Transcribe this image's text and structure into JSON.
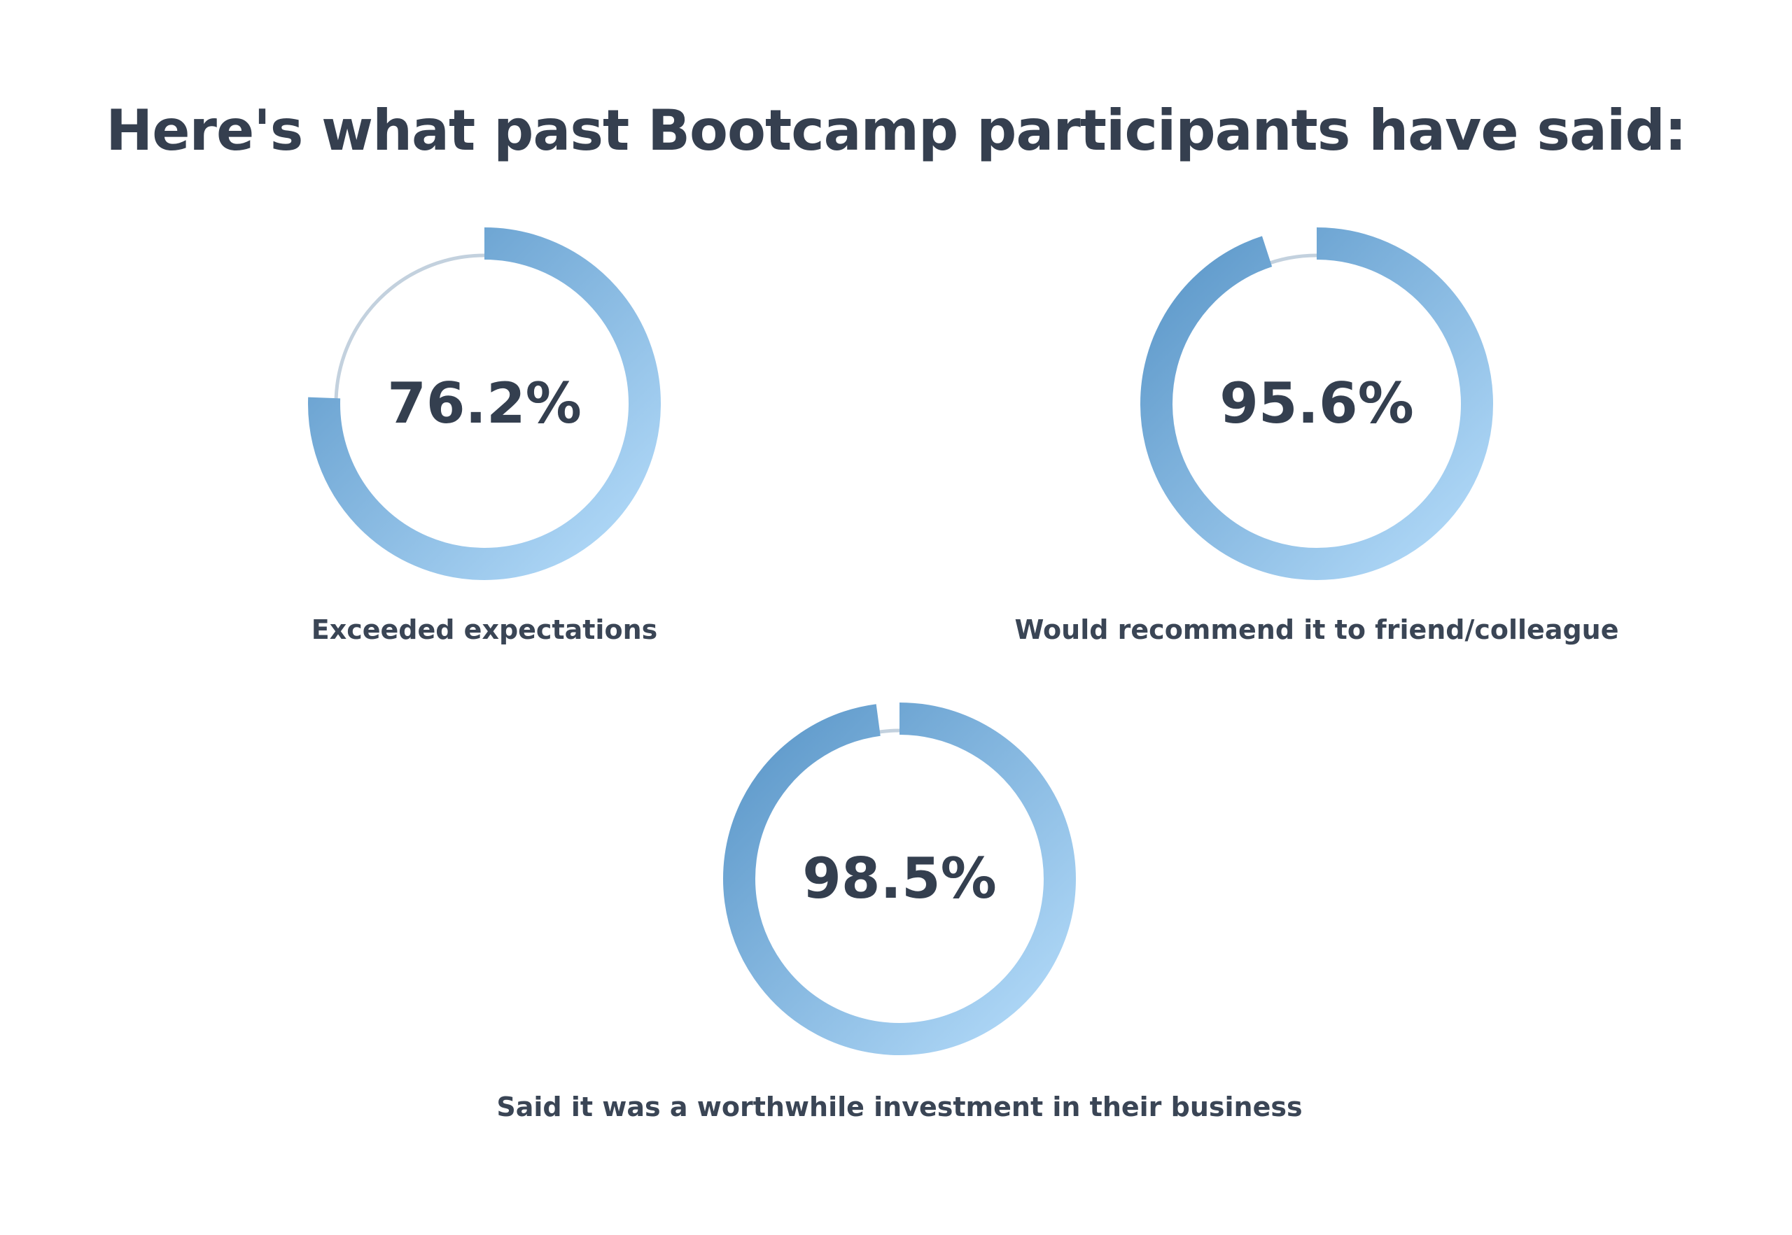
{
  "header": {
    "title": "Here's what past Bootcamp participants have said:"
  },
  "colors": {
    "text": "#343f4f",
    "track": "#c3d1de",
    "gradient_dark": "#5a96c8",
    "gradient_light": "#b5dcfa"
  },
  "chart_data": [
    {
      "type": "pie",
      "subtype": "donut-gauge",
      "value": 76.2,
      "max": 100,
      "value_label": "76.2%",
      "caption": "Exceeded expectations"
    },
    {
      "type": "pie",
      "subtype": "donut-gauge",
      "value": 95.6,
      "max": 100,
      "value_label": "95.6%",
      "caption": "Would recommend it to friend/colleague"
    },
    {
      "type": "pie",
      "subtype": "donut-gauge",
      "value": 98.5,
      "max": 100,
      "value_label": "98.5%",
      "caption": "Said it was a worthwhile investment in their business"
    }
  ]
}
